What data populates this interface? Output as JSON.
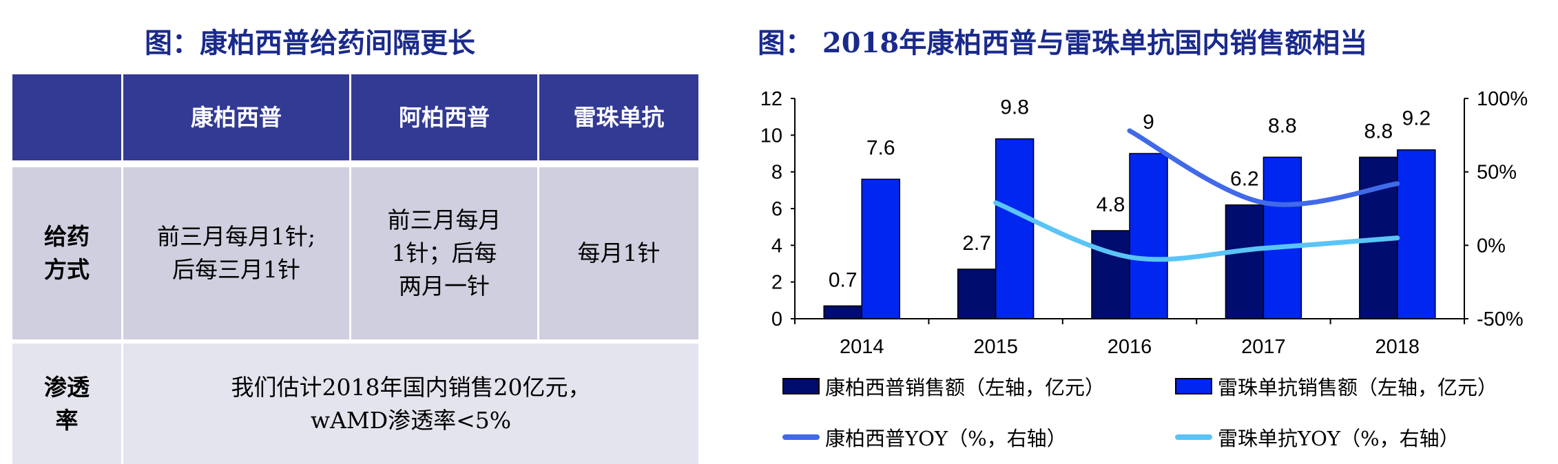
{
  "left": {
    "title": "图：康柏西普给药间隔更长",
    "table": {
      "headers": [
        "",
        "康柏西普",
        "阿柏西普",
        "雷珠单抗"
      ],
      "rows": [
        {
          "label": "给药\n方式",
          "cells": [
            "前三月每月1针;\n后每三月1针",
            "前三月每月\n1针；后每\n两月一针",
            "每月1针"
          ]
        },
        {
          "label": "渗透\n率",
          "merged": "我们估计2018年国内销售20亿元，\nwAMD渗透率<5%"
        }
      ],
      "colors": {
        "header": "#333a94",
        "row1": "#cfcfdf",
        "row2": "#e4e4ee"
      }
    }
  },
  "right": {
    "title": "图： 2018年康柏西普与雷珠单抗国内销售额相当"
  },
  "chart_data": {
    "type": "bar+line",
    "title": "图： 2018年康柏西普与雷珠单抗国内销售额相当",
    "categories": [
      "2014",
      "2015",
      "2016",
      "2017",
      "2018"
    ],
    "left_axis": {
      "ylim": [
        0,
        12
      ],
      "ticks": [
        "0",
        "2",
        "4",
        "6",
        "8",
        "10",
        "12"
      ]
    },
    "right_axis": {
      "ylim": [
        -50,
        100
      ],
      "ticks": [
        "-50%",
        "0%",
        "50%",
        "100%"
      ]
    },
    "grid": false,
    "legend_placement": "bottom",
    "series": [
      {
        "name": "康柏西普销售额（左轴，亿元）",
        "kind": "bar",
        "axis": "left",
        "color": "#000c6e",
        "values": [
          0.7,
          2.7,
          4.8,
          6.2,
          8.8
        ],
        "labels": [
          "0.7",
          "2.7",
          "4.8",
          "6.2",
          "8.8"
        ]
      },
      {
        "name": "雷珠单抗销售额（左轴，亿元）",
        "kind": "bar",
        "axis": "left",
        "color": "#0026f0",
        "values": [
          7.6,
          9.8,
          9,
          8.8,
          9.2
        ],
        "labels": [
          "7.6",
          "9.8",
          "9",
          "8.8",
          "9.2"
        ]
      },
      {
        "name": "康柏西普YOY（%，右轴）",
        "kind": "line",
        "axis": "right",
        "color": "#4169e8",
        "values": [
          null,
          null,
          78,
          29,
          42
        ]
      },
      {
        "name": "雷珠单抗YOY（%，右轴）",
        "kind": "line",
        "axis": "right",
        "color": "#5ac4f6",
        "values": [
          null,
          29,
          -8,
          -2,
          5
        ]
      }
    ]
  }
}
